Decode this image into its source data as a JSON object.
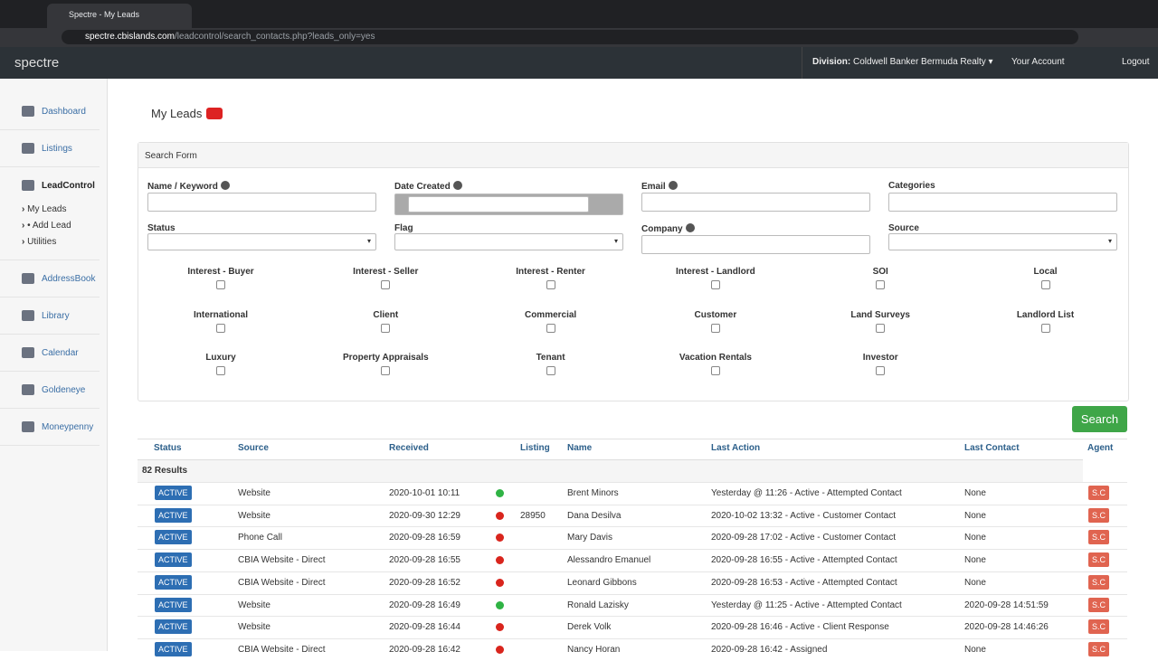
{
  "browser": {
    "tab_title": "Spectre - My Leads",
    "url_host": "spectre.cbislands.com",
    "url_path": "/leadcontrol/search_contacts.php?leads_only=yes"
  },
  "navbar": {
    "brand": "spectre",
    "division_label": "Division:",
    "division": "Coldwell Banker Bermuda Realty",
    "account": "Your Account",
    "logout": "Logout"
  },
  "sidebar": {
    "items": [
      {
        "label": "Dashboard"
      },
      {
        "label": "Listings"
      },
      {
        "label": "LeadControl",
        "active": true,
        "children": [
          "My Leads",
          "• Add Lead",
          "Utilities"
        ]
      },
      {
        "label": "AddressBook"
      },
      {
        "label": "Library"
      },
      {
        "label": "Calendar"
      },
      {
        "label": "Goldeneye"
      },
      {
        "label": "Moneypenny"
      }
    ]
  },
  "page": {
    "title": "My Leads"
  },
  "search_form": {
    "title": "Search Form",
    "fields": [
      {
        "label": "Name / Keyword",
        "type": "text",
        "help": true
      },
      {
        "label": "Date Created",
        "type": "date",
        "help": true
      },
      {
        "label": "Email",
        "type": "text",
        "help": true
      },
      {
        "label": "Categories",
        "type": "text",
        "help": false
      },
      {
        "label": "Status",
        "type": "select",
        "help": false
      },
      {
        "label": "Flag",
        "type": "select",
        "help": false
      },
      {
        "label": "Company",
        "type": "text",
        "help": true
      },
      {
        "label": "Source",
        "type": "select",
        "help": false
      }
    ],
    "checkboxes": [
      "Interest - Buyer",
      "Interest - Seller",
      "Interest - Renter",
      "Interest - Landlord",
      "SOI",
      "Local",
      "International",
      "Client",
      "Commercial",
      "Customer",
      "Land Surveys",
      "Landlord List",
      "Luxury",
      "Property Appraisals",
      "Tenant",
      "Vacation Rentals",
      "Investor"
    ],
    "button": "Search"
  },
  "results": {
    "columns": [
      "Status",
      "Source",
      "Received",
      "Listing",
      "Name",
      "Last Action",
      "Last Contact",
      "Agent"
    ],
    "count": "82 Results",
    "rows": [
      {
        "status": "ACTIVE",
        "source": "Website",
        "received": "2020-10-01 10:11",
        "indicator": "#2fb344",
        "listing": null,
        "name": "Brent Minors",
        "last_action": "Yesterday @ 11:26 - Active - Attempted Contact",
        "last_contact": "None",
        "agent": "S.C"
      },
      {
        "status": "ACTIVE",
        "source": "Website",
        "received": "2020-09-30 12:29",
        "indicator": "#d9251d",
        "listing": 28950,
        "name": "Dana Desilva",
        "last_action": "2020-10-02 13:32 - Active - Customer Contact",
        "last_contact": "None",
        "agent": "S.C"
      },
      {
        "status": "ACTIVE",
        "source": "Phone Call",
        "received": "2020-09-28 16:59",
        "indicator": "#d9251d",
        "listing": null,
        "name": "Mary Davis",
        "last_action": "2020-09-28 17:02 - Active - Customer Contact",
        "last_contact": "None",
        "agent": "S.C"
      },
      {
        "status": "ACTIVE",
        "source": "CBIA Website - Direct",
        "received": "2020-09-28 16:55",
        "indicator": "#d9251d",
        "listing": null,
        "name": "Alessandro Emanuel",
        "last_action": "2020-09-28 16:55 - Active - Attempted Contact",
        "last_contact": "None",
        "agent": "S.C"
      },
      {
        "status": "ACTIVE",
        "source": "CBIA Website - Direct",
        "received": "2020-09-28 16:52",
        "indicator": "#d9251d",
        "listing": null,
        "name": "Leonard Gibbons",
        "last_action": "2020-09-28 16:53 - Active - Attempted Contact",
        "last_contact": "None",
        "agent": "S.C"
      },
      {
        "status": "ACTIVE",
        "source": "Website",
        "received": "2020-09-28 16:49",
        "indicator": "#2fb344",
        "listing": null,
        "name": "Ronald Lazisky",
        "last_action": "Yesterday @ 11:25 - Active - Attempted Contact",
        "last_contact": "2020-09-28 14:51:59",
        "agent": "S.C"
      },
      {
        "status": "ACTIVE",
        "source": "Website",
        "received": "2020-09-28 16:44",
        "indicator": "#d9251d",
        "listing": null,
        "name": "Derek Volk",
        "last_action": "2020-09-28 16:46 - Active - Client Response",
        "last_contact": "2020-09-28 14:46:26",
        "agent": "S.C"
      },
      {
        "status": "ACTIVE",
        "source": "CBIA Website - Direct",
        "received": "2020-09-28 16:42",
        "indicator": "#d9251d",
        "listing": null,
        "name": "Nancy Horan",
        "last_action": "2020-09-28 16:42 - Assigned",
        "last_contact": "None",
        "agent": "S.C"
      }
    ]
  }
}
